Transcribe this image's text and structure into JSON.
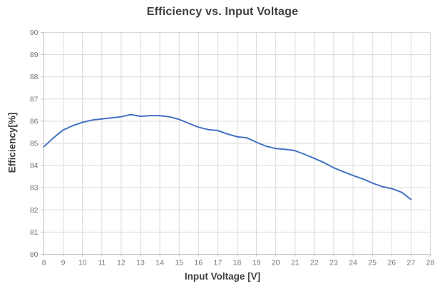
{
  "chart": {
    "title": "Efficiency vs. Input Voltage",
    "xlabel": "Input Voltage [V]",
    "ylabel": "Efficiency[%]"
  },
  "chart_data": {
    "type": "line",
    "title": "Efficiency vs. Input Voltage",
    "xlabel": "Input Voltage [V]",
    "ylabel": "Efficiency[%]",
    "xlim": [
      8,
      28
    ],
    "ylim": [
      80,
      90
    ],
    "x_ticks": [
      8,
      9,
      10,
      11,
      12,
      13,
      14,
      15,
      16,
      17,
      18,
      19,
      20,
      21,
      22,
      23,
      24,
      25,
      26,
      27,
      28
    ],
    "y_ticks": [
      80,
      81,
      82,
      83,
      84,
      85,
      86,
      87,
      88,
      89,
      90
    ],
    "grid": true,
    "legend": false,
    "series": [
      {
        "name": "Efficiency",
        "x": [
          8,
          8.5,
          9,
          9.5,
          10,
          10.5,
          11,
          11.5,
          12,
          12.5,
          13,
          13.5,
          14,
          14.5,
          15,
          15.5,
          16,
          16.5,
          17,
          17.5,
          18,
          18.5,
          19,
          19.5,
          20,
          20.5,
          21,
          21.5,
          22,
          22.5,
          23,
          23.5,
          24,
          24.5,
          25,
          25.5,
          26,
          26.5,
          27
        ],
        "y": [
          84.85,
          85.25,
          85.6,
          85.8,
          85.95,
          86.05,
          86.1,
          86.15,
          86.2,
          86.3,
          86.22,
          86.25,
          86.25,
          86.2,
          86.08,
          85.9,
          85.73,
          85.62,
          85.58,
          85.42,
          85.3,
          85.25,
          85.05,
          84.87,
          84.77,
          84.73,
          84.67,
          84.5,
          84.32,
          84.13,
          83.9,
          83.72,
          83.55,
          83.4,
          83.21,
          83.05,
          82.96,
          82.8,
          82.47
        ]
      }
    ],
    "colors": {
      "line": "#4472C4",
      "grid": "#D9D9D9",
      "axis": "#BFBFBF",
      "tick_label": "#757575",
      "title": "#3F3F3F",
      "background": "#FFFFFF"
    }
  }
}
